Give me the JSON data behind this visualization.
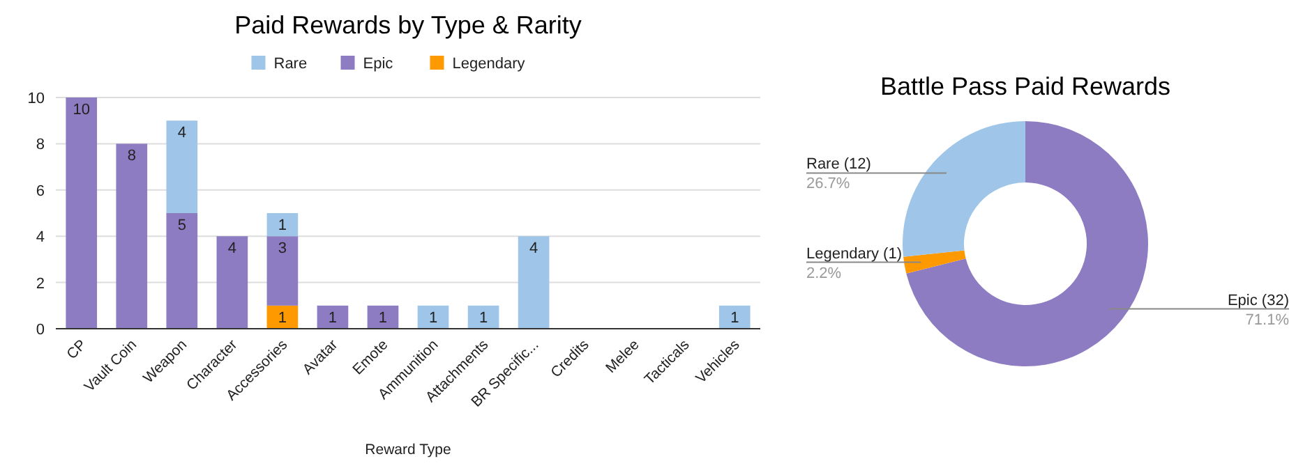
{
  "chart_data": [
    {
      "type": "bar",
      "title": "Paid Rewards by Type & Rarity",
      "xlabel": "Reward Type",
      "categories": [
        "CP",
        "Vault Coin",
        "Weapon",
        "Character",
        "Accessories",
        "Avatar",
        "Emote",
        "Ammunition",
        "Attachments",
        "BR Specific...",
        "Credits",
        "Melee",
        "Tacticals",
        "Vehicles"
      ],
      "stacked": true,
      "series": [
        {
          "name": "Legendary",
          "color": "#ff9900",
          "values": [
            null,
            null,
            null,
            null,
            1,
            null,
            null,
            null,
            null,
            null,
            null,
            null,
            null,
            null
          ]
        },
        {
          "name": "Epic",
          "color": "#8e7cc3",
          "values": [
            10,
            8,
            5,
            4,
            3,
            1,
            1,
            null,
            null,
            null,
            null,
            null,
            null,
            null
          ]
        },
        {
          "name": "Rare",
          "color": "#9fc5e8",
          "values": [
            null,
            null,
            4,
            null,
            1,
            null,
            null,
            1,
            1,
            4,
            null,
            null,
            null,
            1
          ]
        }
      ],
      "ylim": [
        0,
        10
      ],
      "yticks": [
        0,
        2,
        4,
        6,
        8,
        10
      ],
      "grid": "y",
      "legend": "top",
      "data_labels": true
    },
    {
      "type": "donut",
      "title": "Battle Pass Paid Rewards",
      "categories": [
        "Epic (32)",
        "Legendary (1)",
        "Rare (12)"
      ],
      "values": [
        71.1,
        2.2,
        26.7
      ],
      "colors": [
        "#8e7cc3",
        "#ff9900",
        "#9fc5e8"
      ],
      "value_labels": [
        "71.1%",
        "2.2%",
        "26.7%"
      ]
    }
  ]
}
